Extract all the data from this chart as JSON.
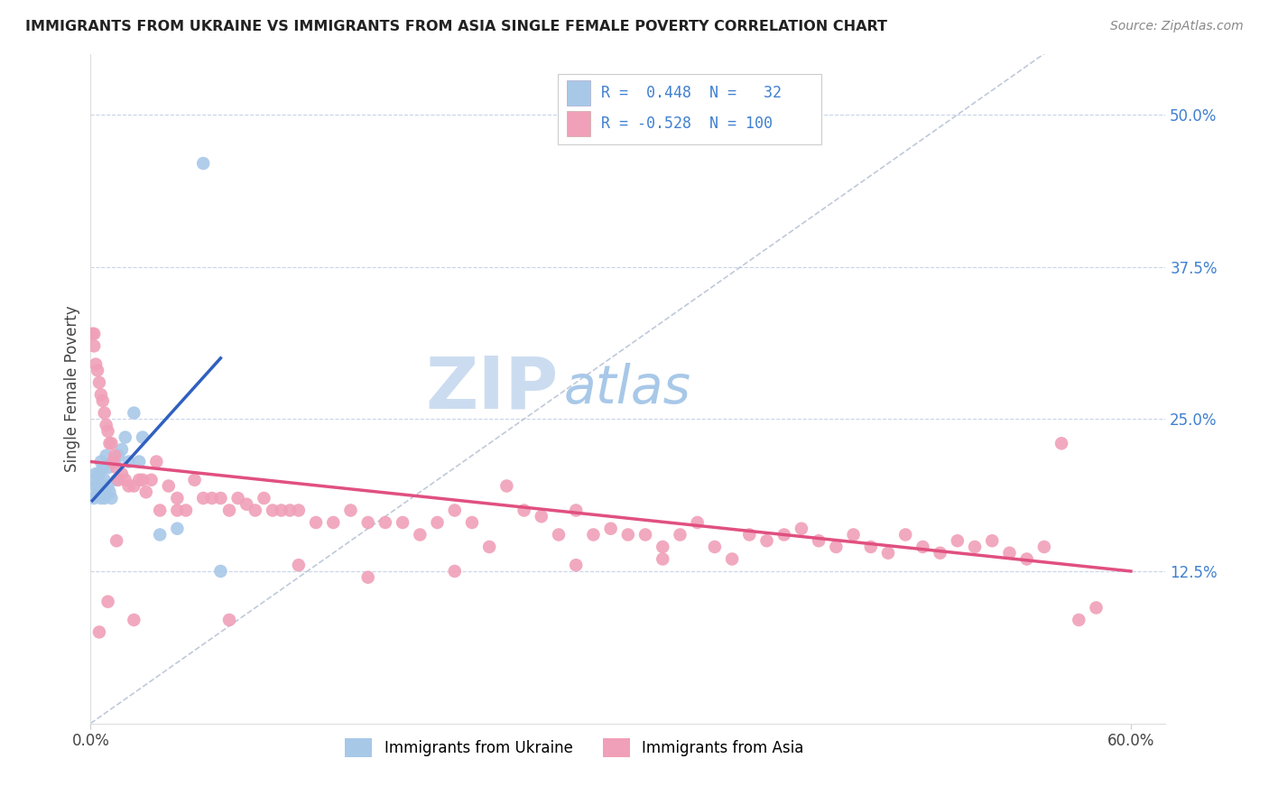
{
  "title": "IMMIGRANTS FROM UKRAINE VS IMMIGRANTS FROM ASIA SINGLE FEMALE POVERTY CORRELATION CHART",
  "source": "Source: ZipAtlas.com",
  "ylabel": "Single Female Poverty",
  "xlim": [
    0.0,
    0.62
  ],
  "ylim": [
    0.0,
    0.55
  ],
  "xtick_positions": [
    0.0,
    0.6
  ],
  "xtick_labels": [
    "0.0%",
    "60.0%"
  ],
  "ytick_vals_right": [
    0.125,
    0.25,
    0.375,
    0.5
  ],
  "ytick_labels_right": [
    "12.5%",
    "25.0%",
    "37.5%",
    "50.0%"
  ],
  "ukraine_color": "#a8c8e8",
  "ukraine_line_color": "#3060c0",
  "asia_color": "#f0a0b8",
  "asia_line_color": "#e05080",
  "legend_text_color": "#4080d0",
  "background_color": "#ffffff",
  "grid_color": "#c8d4e8",
  "diag_color": "#b0bcd0",
  "watermark_color_zip": "#ccdcf0",
  "watermark_color_atlas": "#a8c8e8",
  "ukraine_x": [
    0.001,
    0.002,
    0.003,
    0.003,
    0.004,
    0.005,
    0.005,
    0.006,
    0.006,
    0.007,
    0.007,
    0.008,
    0.008,
    0.009,
    0.01,
    0.01,
    0.011,
    0.012,
    0.013,
    0.014,
    0.015,
    0.016,
    0.018,
    0.02,
    0.022,
    0.025,
    0.028,
    0.03,
    0.04,
    0.05,
    0.065,
    0.075
  ],
  "ukraine_y": [
    0.2,
    0.185,
    0.195,
    0.205,
    0.19,
    0.195,
    0.205,
    0.185,
    0.215,
    0.195,
    0.21,
    0.185,
    0.2,
    0.22,
    0.195,
    0.21,
    0.19,
    0.185,
    0.215,
    0.215,
    0.2,
    0.22,
    0.225,
    0.235,
    0.215,
    0.255,
    0.215,
    0.235,
    0.155,
    0.16,
    0.46,
    0.125
  ],
  "asia_x": [
    0.001,
    0.002,
    0.003,
    0.004,
    0.005,
    0.006,
    0.007,
    0.008,
    0.009,
    0.01,
    0.011,
    0.012,
    0.013,
    0.014,
    0.015,
    0.016,
    0.018,
    0.02,
    0.022,
    0.025,
    0.028,
    0.03,
    0.032,
    0.035,
    0.038,
    0.04,
    0.045,
    0.05,
    0.055,
    0.06,
    0.065,
    0.07,
    0.075,
    0.08,
    0.085,
    0.09,
    0.095,
    0.1,
    0.105,
    0.11,
    0.115,
    0.12,
    0.13,
    0.14,
    0.15,
    0.16,
    0.17,
    0.18,
    0.19,
    0.2,
    0.21,
    0.22,
    0.23,
    0.24,
    0.25,
    0.26,
    0.27,
    0.28,
    0.29,
    0.3,
    0.31,
    0.32,
    0.33,
    0.34,
    0.35,
    0.36,
    0.37,
    0.38,
    0.39,
    0.4,
    0.41,
    0.42,
    0.43,
    0.44,
    0.45,
    0.46,
    0.47,
    0.48,
    0.49,
    0.5,
    0.51,
    0.52,
    0.53,
    0.54,
    0.55,
    0.56,
    0.57,
    0.58,
    0.33,
    0.28,
    0.21,
    0.16,
    0.12,
    0.08,
    0.05,
    0.025,
    0.015,
    0.01,
    0.005,
    0.002
  ],
  "asia_y": [
    0.32,
    0.31,
    0.295,
    0.29,
    0.28,
    0.27,
    0.265,
    0.255,
    0.245,
    0.24,
    0.23,
    0.23,
    0.215,
    0.22,
    0.21,
    0.2,
    0.205,
    0.2,
    0.195,
    0.195,
    0.2,
    0.2,
    0.19,
    0.2,
    0.215,
    0.175,
    0.195,
    0.185,
    0.175,
    0.2,
    0.185,
    0.185,
    0.185,
    0.175,
    0.185,
    0.18,
    0.175,
    0.185,
    0.175,
    0.175,
    0.175,
    0.175,
    0.165,
    0.165,
    0.175,
    0.165,
    0.165,
    0.165,
    0.155,
    0.165,
    0.175,
    0.165,
    0.145,
    0.195,
    0.175,
    0.17,
    0.155,
    0.175,
    0.155,
    0.16,
    0.155,
    0.155,
    0.145,
    0.155,
    0.165,
    0.145,
    0.135,
    0.155,
    0.15,
    0.155,
    0.16,
    0.15,
    0.145,
    0.155,
    0.145,
    0.14,
    0.155,
    0.145,
    0.14,
    0.15,
    0.145,
    0.15,
    0.14,
    0.135,
    0.145,
    0.23,
    0.085,
    0.095,
    0.135,
    0.13,
    0.125,
    0.12,
    0.13,
    0.085,
    0.175,
    0.085,
    0.15,
    0.1,
    0.075,
    0.32
  ]
}
